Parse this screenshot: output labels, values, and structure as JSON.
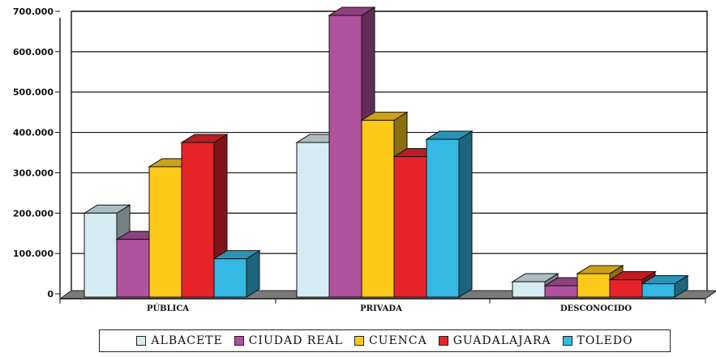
{
  "chart_data": {
    "type": "bar",
    "categories": [
      "PÚBLICA",
      "PRIVADA",
      "DESCONOCIDO"
    ],
    "series": [
      {
        "name": "ALBACETE",
        "color": "#d6ecf3",
        "values": [
          200000,
          375000,
          30000
        ]
      },
      {
        "name": "CIUDAD REAL",
        "color": "#b0529e",
        "values": [
          135000,
          690000,
          20000
        ]
      },
      {
        "name": "CUENCA",
        "color": "#ffc91a",
        "values": [
          315000,
          430000,
          50000
        ]
      },
      {
        "name": "GUADALAJARA",
        "color": "#e8242b",
        "values": [
          375000,
          340000,
          35000
        ]
      },
      {
        "name": "TOLEDO",
        "color": "#33b9e4",
        "values": [
          87000,
          383000,
          25000
        ]
      }
    ],
    "y_ticks": [
      "0",
      "100.000",
      "200.000",
      "300.000",
      "400.000",
      "500.000",
      "600.000",
      "700.000"
    ],
    "ylim": [
      0,
      700000
    ],
    "grid": true,
    "legend_position": "bottom"
  }
}
